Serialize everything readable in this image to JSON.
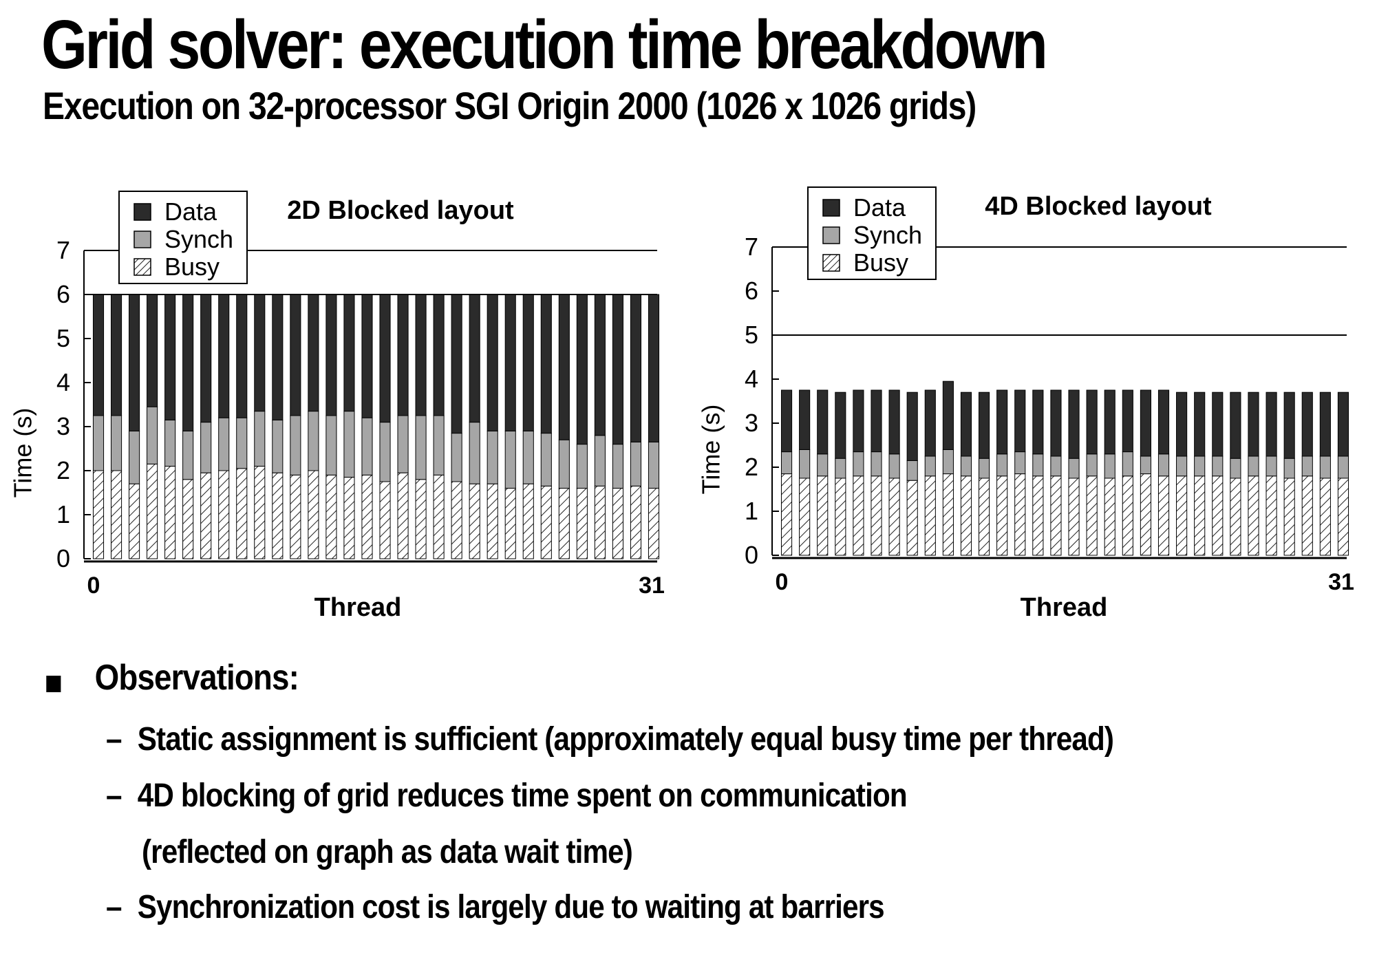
{
  "slide": {
    "title": "Grid solver: execution time breakdown",
    "subtitle": "Execution on 32-processor SGI Origin 2000 (1026 x 1026 grids)"
  },
  "chart_data": [
    {
      "type": "bar",
      "stacked": true,
      "title": "2D Blocked layout",
      "xlabel": "Thread",
      "ylabel": "Time  (s)",
      "x_tick_labels": [
        "0",
        "31"
      ],
      "y_ticks": [
        "0",
        "1",
        "2",
        "3",
        "4",
        "5",
        "6",
        "7"
      ],
      "ylim": [
        0,
        7
      ],
      "reference_lines": [
        6,
        7
      ],
      "legend": {
        "position": "top-left",
        "entries": [
          "Data",
          "Synch",
          "Busy"
        ]
      },
      "colors": {
        "Data": "#2b2b2b",
        "Synch": "#a6a6a6",
        "Busy": "hatched"
      },
      "threads": 32,
      "series": [
        {
          "name": "Busy",
          "values": [
            2.0,
            2.0,
            1.7,
            2.15,
            2.1,
            1.8,
            1.95,
            2.0,
            2.05,
            2.1,
            1.95,
            1.9,
            2.0,
            1.9,
            1.85,
            1.9,
            1.75,
            1.95,
            1.8,
            1.9,
            1.75,
            1.7,
            1.7,
            1.6,
            1.7,
            1.65,
            1.6,
            1.6,
            1.65,
            1.6,
            1.65,
            1.6
          ]
        },
        {
          "name": "Synch",
          "values": [
            1.25,
            1.25,
            1.2,
            1.3,
            1.05,
            1.1,
            1.15,
            1.2,
            1.15,
            1.25,
            1.2,
            1.35,
            1.35,
            1.35,
            1.5,
            1.3,
            1.35,
            1.3,
            1.45,
            1.35,
            1.1,
            1.4,
            1.2,
            1.3,
            1.2,
            1.2,
            1.1,
            1.0,
            1.15,
            1.0,
            1.0,
            1.05
          ]
        },
        {
          "name": "Data",
          "values": [
            2.75,
            2.75,
            3.1,
            2.55,
            2.85,
            3.1,
            2.9,
            2.8,
            2.8,
            2.65,
            2.85,
            2.75,
            2.65,
            2.75,
            2.65,
            2.8,
            2.9,
            2.75,
            2.75,
            2.75,
            3.15,
            2.9,
            3.1,
            3.1,
            3.1,
            3.15,
            3.3,
            3.4,
            3.2,
            3.4,
            3.35,
            3.35
          ]
        }
      ]
    },
    {
      "type": "bar",
      "stacked": true,
      "title": "4D Blocked layout",
      "xlabel": "Thread",
      "ylabel": "Time  (s)",
      "x_tick_labels": [
        "0",
        "31"
      ],
      "y_ticks": [
        "0",
        "1",
        "2",
        "3",
        "4",
        "5",
        "6",
        "7"
      ],
      "ylim": [
        0,
        7
      ],
      "reference_lines": [
        5,
        7
      ],
      "legend": {
        "position": "top-left",
        "entries": [
          "Data",
          "Synch",
          "Busy"
        ]
      },
      "colors": {
        "Data": "#2b2b2b",
        "Synch": "#a6a6a6",
        "Busy": "hatched"
      },
      "threads": 32,
      "series": [
        {
          "name": "Busy",
          "values": [
            1.85,
            1.75,
            1.8,
            1.75,
            1.8,
            1.8,
            1.75,
            1.7,
            1.8,
            1.85,
            1.8,
            1.75,
            1.8,
            1.85,
            1.8,
            1.8,
            1.75,
            1.8,
            1.75,
            1.8,
            1.85,
            1.8,
            1.8,
            1.8,
            1.8,
            1.75,
            1.8,
            1.8,
            1.75,
            1.8,
            1.75,
            1.75
          ]
        },
        {
          "name": "Synch",
          "values": [
            0.5,
            0.65,
            0.5,
            0.45,
            0.55,
            0.55,
            0.55,
            0.45,
            0.45,
            0.55,
            0.45,
            0.45,
            0.5,
            0.5,
            0.5,
            0.45,
            0.45,
            0.5,
            0.55,
            0.55,
            0.4,
            0.5,
            0.45,
            0.45,
            0.45,
            0.45,
            0.45,
            0.45,
            0.45,
            0.45,
            0.5,
            0.5
          ]
        },
        {
          "name": "Data",
          "values": [
            1.4,
            1.35,
            1.45,
            1.5,
            1.4,
            1.4,
            1.45,
            1.55,
            1.5,
            1.55,
            1.45,
            1.5,
            1.45,
            1.4,
            1.45,
            1.5,
            1.55,
            1.45,
            1.45,
            1.4,
            1.5,
            1.45,
            1.45,
            1.45,
            1.45,
            1.5,
            1.45,
            1.45,
            1.5,
            1.45,
            1.45,
            1.45
          ]
        }
      ]
    }
  ],
  "observations": {
    "heading": "Observations:",
    "items": [
      "Static assignment is sufficient (approximately equal busy time per thread)",
      "4D blocking of grid reduces time spent on communication",
      "(reflected on graph as data wait time)",
      "Synchronization cost is largely due to waiting at barriers"
    ],
    "dash": "–"
  }
}
